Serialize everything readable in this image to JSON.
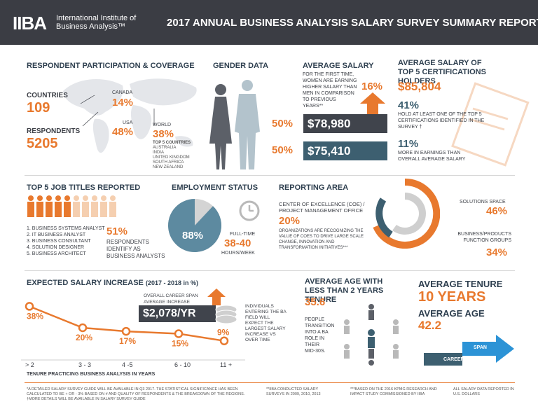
{
  "header": {
    "logo": "IIBA",
    "org_name": "International Institute of Business Analysis™",
    "title": "2017 ANNUAL BUSINESS ANALYSIS SALARY SURVEY SUMMARY REPORT*"
  },
  "participation": {
    "heading": "RESPONDENT PARTICIPATION & COVERAGE",
    "countries_label": "COUNTRIES",
    "countries_value": "109",
    "respondents_label": "RESPONDENTS",
    "respondents_value": "5205",
    "canada_label": "CANADA",
    "canada_value": "14%",
    "usa_label": "USA",
    "usa_value": "48%",
    "world_label": "WORLD",
    "world_value": "38%",
    "top5_label": "TOP 5 COUNTRIES",
    "top5": [
      "AUSTRALIA",
      "INDIA",
      "UNITED KINGDOM",
      "SOUTH AFRICA",
      "NEW ZEALAND"
    ]
  },
  "gender": {
    "heading": "GENDER DATA",
    "female_share": "50%",
    "male_share": "50%"
  },
  "avg_salary": {
    "heading": "AVERAGE SALARY",
    "note": "FOR THE FIRST TIME, WOMEN ARE EARNING HIGHER SALARY THAN MEN IN COMPARISON TO PREVIOUS YEARS**",
    "increase": "16%",
    "female_salary": "$78,980",
    "male_salary": "$75,410"
  },
  "certs": {
    "heading": "AVERAGE SALARY OF TOP 5 CERTIFICATIONS HOLDERS",
    "salary": "$85,804",
    "pct1": "41%",
    "pct1_text": "HOLD AT LEAST ONE OF THE TOP 5 CERTIFICATIONS IDENTIFIED IN THE SURVEY †",
    "pct2": "11%",
    "pct2_text": "MORE IN EARNINGS THAN OVERALL AVERAGE SALARY"
  },
  "job_titles": {
    "heading": "TOP 5 JOB TITLES REPORTED",
    "titles": [
      "1. BUSINESS SYSTEMS ANALYST",
      "2. IT BUSINESS ANALYST",
      "3. BUSINESS CONSULTANT",
      "4. SOLUTION DESIGNER",
      "5. BUSINESS ARCHITECT"
    ],
    "pct": "51%",
    "pct_text": "RESPONDENTS IDENTIFY AS BUSINESS ANALYSTS",
    "people_highlight": 5,
    "people_total": 10
  },
  "employment": {
    "heading": "EMPLOYMENT STATUS",
    "fulltime_pct": "88%",
    "fulltime_fraction": 0.88,
    "fulltime_label": "FULL-TIME",
    "hours": "38-40",
    "hours_label": "HOURS/WEEK"
  },
  "reporting": {
    "heading": "REPORTING AREA",
    "coe_label": "CENTER OF EXCELLENCE (COE) / PROJECT MANAGEMENT OFFICE",
    "coe_pct": "20%",
    "coe_note": "ORGANIZATIONS ARE RECOGNIZING THE VALUE OF COEs TO DRIVE LARGE SCALE CHANGE, INNOVATION AND TRANSFORMATION INITIATIVES***",
    "solutions_label": "SOLUTIONS SPACE",
    "solutions_pct": "46%",
    "function_label": "BUSINESS/PRODUCTS FUNCTION GROUPS",
    "function_pct": "34%",
    "colors": {
      "orange": "#e8792e",
      "teal": "#3d5f70",
      "gray": "#cfcfcf"
    }
  },
  "salary_increase": {
    "heading": "EXPECTED SALARY INCREASE",
    "heading_suffix": "(2017 - 2018 in %)",
    "career_label": "OVERALL CAREER SPAN AVERAGE INCREASE",
    "career_value": "$2,078/YR",
    "note": "INDIVIDUALS ENTERING THE BA FIELD WILL EXPECT THE LARGEST SALARY INCREASE VS OVER TIME",
    "xlabel": "TENURE PRACTICING BUSINESS ANALYSIS IN YEARS",
    "points": [
      {
        "x": "> 2",
        "label": "38%"
      },
      {
        "x": "3 - 3",
        "label": "20%"
      },
      {
        "x": "4 -5",
        "label": "17%"
      },
      {
        "x": "6 - 10",
        "label": "15%"
      },
      {
        "x": "11 +",
        "label": "9%"
      }
    ]
  },
  "chart_data": {
    "type": "line",
    "categories": [
      "> 2",
      "3 - 3",
      "4 -5",
      "6 - 10",
      "11 +"
    ],
    "values": [
      38,
      20,
      17,
      15,
      9
    ],
    "title": "EXPECTED SALARY INCREASE (2017 - 2018 in %)",
    "xlabel": "TENURE PRACTICING BUSINESS ANALYSIS IN YEARS",
    "ylabel": "",
    "ylim": [
      0,
      40
    ]
  },
  "age": {
    "heading": "AVERAGE AGE WITH LESS THAN 2 YEARS TENURE",
    "value": "35.6",
    "note": "PEOPLE TRANSITION INTO A BA ROLE IN THEIR MID-30S."
  },
  "tenure": {
    "heading": "AVERAGE TENURE",
    "value": "10 YEARS",
    "age_heading": "AVERAGE AGE",
    "age_value": "42.2",
    "span_label": "SPAN",
    "career_label": "CAREER"
  },
  "footnotes": {
    "f1": "*A DETAILED SALARY SURVEY GUIDE WILL BE AVAILABLE IN Q3 2017. THE STATISTICAL SIGNIFICANCE HAS BEEN CALCULATED TO BE + OR - 3% BASED ON # AND QUALITY OF RESPONDENTS & THE BREAKDOWN OF THE REGIONS. †MORE DETAILS WILL BE AVAILABLE IN SALARY SURVEY GUIDE",
    "f2": "**IIBA CONDUCTED SALARY SURVEYS IN 2009, 2010, 2013",
    "f3": "***BASED ON THE 2016 KPMG RESEARCH AND IMPACT STUDY COMMISSIONED BY IIBA",
    "f4": "ALL SALARY DATA REPORTED IN U.S. DOLLARS"
  }
}
